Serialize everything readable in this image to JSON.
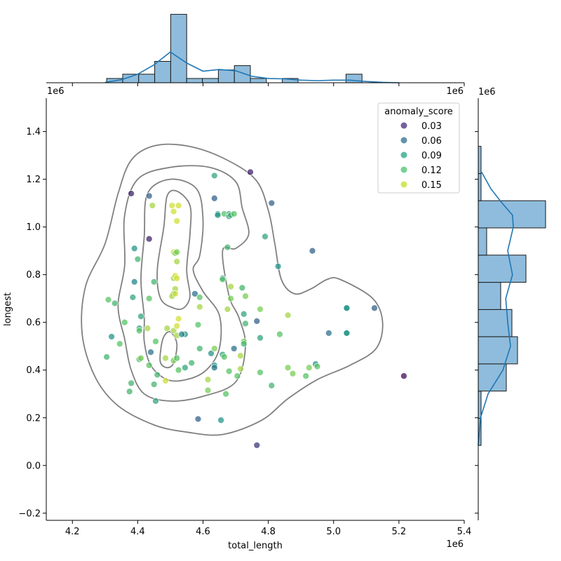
{
  "chart_data": {
    "type": "scatter",
    "xlabel": "total_length",
    "ylabel": "longest",
    "x_offset_label": "1e6",
    "y_offset_label": "1e6",
    "marg_x_offset_label": "1e6",
    "marg_y_offset_label": "1e6",
    "xlim": [
      4.12,
      5.4
    ],
    "ylim": [
      -0.23,
      1.54
    ],
    "x_ticks": [
      4.2,
      4.4,
      4.6,
      4.8,
      5.0,
      5.2,
      5.4
    ],
    "x_tick_labels": [
      "4.2",
      "4.4",
      "4.6",
      "4.8",
      "5.0",
      "5.2",
      "5.4"
    ],
    "y_ticks": [
      -0.2,
      0.0,
      0.2,
      0.4,
      0.6,
      0.8,
      1.0,
      1.2,
      1.4
    ],
    "y_tick_labels": [
      "−0.2",
      "0.0",
      "0.2",
      "0.4",
      "0.6",
      "0.8",
      "1.0",
      "1.2",
      "1.4"
    ],
    "grid": false,
    "legend": {
      "title": "anomaly_score",
      "placement": "upper right",
      "entries": [
        {
          "label": "0.03",
          "color": "#472c7a"
        },
        {
          "label": "0.06",
          "color": "#2c6f8e"
        },
        {
          "label": "0.09",
          "color": "#21a585"
        },
        {
          "label": "0.12",
          "color": "#48c16e"
        },
        {
          "label": "0.15",
          "color": "#c2df23"
        }
      ]
    },
    "points": [
      [
        4.38,
        1.14,
        0.03
      ],
      [
        4.435,
        1.13,
        0.06
      ],
      [
        4.435,
        0.95,
        0.03
      ],
      [
        4.445,
        1.09,
        0.14
      ],
      [
        4.39,
        0.91,
        0.09
      ],
      [
        4.4,
        0.865,
        0.11
      ],
      [
        4.39,
        0.77,
        0.08
      ],
      [
        4.45,
        0.77,
        0.11
      ],
      [
        4.385,
        0.705,
        0.1
      ],
      [
        4.435,
        0.7,
        0.12
      ],
      [
        4.41,
        0.625,
        0.1
      ],
      [
        4.405,
        0.575,
        0.1
      ],
      [
        4.405,
        0.565,
        0.12
      ],
      [
        4.43,
        0.575,
        0.14
      ],
      [
        4.36,
        0.6,
        0.12
      ],
      [
        4.31,
        0.695,
        0.12
      ],
      [
        4.33,
        0.68,
        0.11
      ],
      [
        4.32,
        0.54,
        0.09
      ],
      [
        4.345,
        0.51,
        0.12
      ],
      [
        4.305,
        0.455,
        0.11
      ],
      [
        4.38,
        0.345,
        0.11
      ],
      [
        4.375,
        0.31,
        0.11
      ],
      [
        4.44,
        0.475,
        0.07
      ],
      [
        4.455,
        0.52,
        0.12
      ],
      [
        4.405,
        0.445,
        0.11
      ],
      [
        4.41,
        0.45,
        0.13
      ],
      [
        4.435,
        0.42,
        0.12
      ],
      [
        4.45,
        0.34,
        0.11
      ],
      [
        4.46,
        0.38,
        0.11
      ],
      [
        4.455,
        0.27,
        0.1
      ],
      [
        4.485,
        0.355,
        0.15
      ],
      [
        4.485,
        0.45,
        0.14
      ],
      [
        4.49,
        0.575,
        0.14
      ],
      [
        4.51,
        0.44,
        0.13
      ],
      [
        4.51,
        0.565,
        0.14
      ],
      [
        4.52,
        0.585,
        0.15
      ],
      [
        4.525,
        0.615,
        0.15
      ],
      [
        4.52,
        0.545,
        0.14
      ],
      [
        4.545,
        0.55,
        0.09
      ],
      [
        4.535,
        0.55,
        0.08
      ],
      [
        4.545,
        0.41,
        0.1
      ],
      [
        4.565,
        0.43,
        0.11
      ],
      [
        4.525,
        0.4,
        0.12
      ],
      [
        4.52,
        0.45,
        0.12
      ],
      [
        4.505,
        1.09,
        0.15
      ],
      [
        4.51,
        1.065,
        0.15
      ],
      [
        4.525,
        1.09,
        0.15
      ],
      [
        4.52,
        1.025,
        0.15
      ],
      [
        4.51,
        0.895,
        0.15
      ],
      [
        4.515,
        0.89,
        0.13
      ],
      [
        4.52,
        0.895,
        0.13
      ],
      [
        4.52,
        0.855,
        0.14
      ],
      [
        4.51,
        0.785,
        0.14
      ],
      [
        4.515,
        0.795,
        0.15
      ],
      [
        4.52,
        0.785,
        0.15
      ],
      [
        4.515,
        0.74,
        0.14
      ],
      [
        4.51,
        0.72,
        0.12
      ],
      [
        4.505,
        0.71,
        0.14
      ],
      [
        4.515,
        0.72,
        0.15
      ],
      [
        4.575,
        0.72,
        0.07
      ],
      [
        4.59,
        0.705,
        0.12
      ],
      [
        4.59,
        0.665,
        0.14
      ],
      [
        4.585,
        0.59,
        0.12
      ],
      [
        4.59,
        0.49,
        0.11
      ],
      [
        4.585,
        0.195,
        0.06
      ],
      [
        4.615,
        0.36,
        0.14
      ],
      [
        4.615,
        0.315,
        0.13
      ],
      [
        4.625,
        0.47,
        0.09
      ],
      [
        4.635,
        0.42,
        0.09
      ],
      [
        4.635,
        0.41,
        0.07
      ],
      [
        4.635,
        0.49,
        0.13
      ],
      [
        4.635,
        1.12,
        0.06
      ],
      [
        4.635,
        1.215,
        0.1
      ],
      [
        4.645,
        1.055,
        0.1
      ],
      [
        4.645,
        1.05,
        0.09
      ],
      [
        4.665,
        1.055,
        0.12
      ],
      [
        4.68,
        1.055,
        0.1
      ],
      [
        4.68,
        1.045,
        0.09
      ],
      [
        4.685,
        1.05,
        0.11
      ],
      [
        4.695,
        1.055,
        0.12
      ],
      [
        4.675,
        0.915,
        0.11
      ],
      [
        4.66,
        0.785,
        0.09
      ],
      [
        4.66,
        0.78,
        0.12
      ],
      [
        4.66,
        0.465,
        0.1
      ],
      [
        4.655,
        0.19,
        0.09
      ],
      [
        4.67,
        0.3,
        0.12
      ],
      [
        4.665,
        0.455,
        0.12
      ],
      [
        4.68,
        0.395,
        0.12
      ],
      [
        4.675,
        0.655,
        0.14
      ],
      [
        4.685,
        0.7,
        0.13
      ],
      [
        4.685,
        0.75,
        0.14
      ],
      [
        4.695,
        0.49,
        0.07
      ],
      [
        4.705,
        0.375,
        0.12
      ],
      [
        4.715,
        0.405,
        0.14
      ],
      [
        4.715,
        0.46,
        0.14
      ],
      [
        4.725,
        0.52,
        0.13
      ],
      [
        4.72,
        0.745,
        0.11
      ],
      [
        4.725,
        0.635,
        0.1
      ],
      [
        4.73,
        0.71,
        0.13
      ],
      [
        4.73,
        0.595,
        0.11
      ],
      [
        4.725,
        0.51,
        0.11
      ],
      [
        4.745,
        1.23,
        0.03
      ],
      [
        4.765,
        0.605,
        0.06
      ],
      [
        4.775,
        0.535,
        0.1
      ],
      [
        4.775,
        0.655,
        0.13
      ],
      [
        4.775,
        0.39,
        0.12
      ],
      [
        4.79,
        0.96,
        0.1
      ],
      [
        4.765,
        0.085,
        0.04
      ],
      [
        4.81,
        1.1,
        0.06
      ],
      [
        4.81,
        0.335,
        0.11
      ],
      [
        4.83,
        0.835,
        0.09
      ],
      [
        4.835,
        0.55,
        0.12
      ],
      [
        4.86,
        0.41,
        0.13
      ],
      [
        4.86,
        0.63,
        0.14
      ],
      [
        4.875,
        0.385,
        0.13
      ],
      [
        4.915,
        0.375,
        0.12
      ],
      [
        4.925,
        0.41,
        0.13
      ],
      [
        4.935,
        0.9,
        0.06
      ],
      [
        4.945,
        0.425,
        0.09
      ],
      [
        4.95,
        0.415,
        0.12
      ],
      [
        4.985,
        0.555,
        0.07
      ],
      [
        5.04,
        0.66,
        0.09
      ],
      [
        5.04,
        0.66,
        0.09
      ],
      [
        5.04,
        0.555,
        0.09
      ],
      [
        5.04,
        0.555,
        0.09
      ],
      [
        5.125,
        0.66,
        0.06
      ],
      [
        5.215,
        0.375,
        0.02
      ]
    ],
    "kde_contours": [
      [
        [
          4.24,
          0.75
        ],
        [
          4.3,
          0.93
        ],
        [
          4.34,
          1.14
        ],
        [
          4.38,
          1.28
        ],
        [
          4.45,
          1.34
        ],
        [
          4.55,
          1.34
        ],
        [
          4.66,
          1.29
        ],
        [
          4.76,
          1.2
        ],
        [
          4.8,
          1.07
        ],
        [
          4.82,
          0.93
        ],
        [
          4.84,
          0.78
        ],
        [
          4.88,
          0.72
        ],
        [
          4.93,
          0.74
        ],
        [
          4.98,
          0.78
        ],
        [
          5.02,
          0.78
        ],
        [
          5.12,
          0.7
        ],
        [
          5.15,
          0.6
        ],
        [
          5.13,
          0.49
        ],
        [
          5.05,
          0.42
        ],
        [
          4.95,
          0.36
        ],
        [
          4.86,
          0.28
        ],
        [
          4.78,
          0.19
        ],
        [
          4.66,
          0.13
        ],
        [
          4.55,
          0.14
        ],
        [
          4.45,
          0.17
        ],
        [
          4.34,
          0.25
        ],
        [
          4.27,
          0.37
        ],
        [
          4.23,
          0.55
        ]
      ],
      [
        [
          4.34,
          0.67
        ],
        [
          4.36,
          0.84
        ],
        [
          4.36,
          1.05
        ],
        [
          4.4,
          1.2
        ],
        [
          4.5,
          1.25
        ],
        [
          4.62,
          1.25
        ],
        [
          4.7,
          1.19
        ],
        [
          4.72,
          1.08
        ],
        [
          4.74,
          0.97
        ],
        [
          4.7,
          0.91
        ],
        [
          4.66,
          0.9
        ],
        [
          4.68,
          0.71
        ],
        [
          4.71,
          0.62
        ],
        [
          4.73,
          0.5
        ],
        [
          4.7,
          0.35
        ],
        [
          4.6,
          0.29
        ],
        [
          4.5,
          0.27
        ],
        [
          4.42,
          0.3
        ],
        [
          4.38,
          0.4
        ],
        [
          4.36,
          0.53
        ]
      ],
      [
        [
          4.42,
          0.62
        ],
        [
          4.41,
          0.78
        ],
        [
          4.42,
          0.96
        ],
        [
          4.43,
          1.14
        ],
        [
          4.5,
          1.2
        ],
        [
          4.58,
          1.16
        ],
        [
          4.6,
          1.03
        ],
        [
          4.59,
          0.88
        ],
        [
          4.57,
          0.82
        ],
        [
          4.6,
          0.73
        ],
        [
          4.65,
          0.63
        ],
        [
          4.65,
          0.49
        ],
        [
          4.61,
          0.4
        ],
        [
          4.55,
          0.36
        ],
        [
          4.49,
          0.36
        ],
        [
          4.44,
          0.42
        ],
        [
          4.42,
          0.52
        ]
      ],
      [
        [
          4.46,
          0.82
        ],
        [
          4.48,
          1.0
        ],
        [
          4.49,
          1.13
        ],
        [
          4.52,
          1.15
        ],
        [
          4.56,
          1.09
        ],
        [
          4.56,
          0.97
        ],
        [
          4.55,
          0.82
        ],
        [
          4.56,
          0.71
        ],
        [
          4.54,
          0.66
        ],
        [
          4.51,
          0.66
        ],
        [
          4.47,
          0.7
        ]
      ],
      [
        [
          4.47,
          0.48
        ],
        [
          4.48,
          0.54
        ],
        [
          4.5,
          0.56
        ],
        [
          4.52,
          0.51
        ],
        [
          4.51,
          0.43
        ],
        [
          4.49,
          0.41
        ],
        [
          4.47,
          0.43
        ]
      ]
    ],
    "marginal_x": {
      "bin_edges": [
        4.305,
        4.354,
        4.403,
        4.452,
        4.501,
        4.55,
        4.598,
        4.647,
        4.696,
        4.745,
        4.794,
        4.843,
        4.891,
        4.94,
        4.989,
        5.038,
        5.087,
        5.136,
        5.185,
        5.234
      ],
      "counts": [
        1,
        2,
        2,
        5,
        16,
        1,
        1,
        3,
        4,
        1,
        0,
        1,
        0,
        0,
        0,
        2,
        0,
        0,
        0
      ],
      "kde": [
        [
          4.3,
          0.1
        ],
        [
          4.35,
          0.7
        ],
        [
          4.4,
          2.0
        ],
        [
          4.45,
          4.2
        ],
        [
          4.5,
          7.2
        ],
        [
          4.55,
          4.6
        ],
        [
          4.6,
          2.7
        ],
        [
          4.65,
          3.1
        ],
        [
          4.7,
          2.8
        ],
        [
          4.75,
          1.5
        ],
        [
          4.8,
          1.0
        ],
        [
          4.85,
          0.9
        ],
        [
          4.9,
          0.6
        ],
        [
          4.95,
          0.5
        ],
        [
          5.0,
          0.6
        ],
        [
          5.05,
          0.6
        ],
        [
          5.1,
          0.3
        ],
        [
          5.15,
          0.1
        ],
        [
          5.2,
          0.0
        ]
      ]
    },
    "marginal_y": {
      "bin_edges": [
        0.084,
        0.198,
        0.312,
        0.426,
        0.54,
        0.654,
        0.768,
        0.882,
        0.996,
        1.11,
        1.224,
        1.338
      ],
      "counts": [
        0,
        1,
        10,
        14,
        12,
        8,
        17,
        3,
        24,
        1,
        0
      ],
      "kde": [
        [
          0.085,
          0.0
        ],
        [
          0.2,
          0.8
        ],
        [
          0.3,
          3.5
        ],
        [
          0.4,
          8.8
        ],
        [
          0.5,
          11.5
        ],
        [
          0.6,
          10.5
        ],
        [
          0.7,
          9.8
        ],
        [
          0.8,
          12.2
        ],
        [
          0.9,
          10.5
        ],
        [
          1.0,
          12.5
        ],
        [
          1.05,
          12.2
        ],
        [
          1.1,
          8.5
        ],
        [
          1.16,
          4.5
        ],
        [
          1.23,
          1.2
        ]
      ]
    }
  }
}
